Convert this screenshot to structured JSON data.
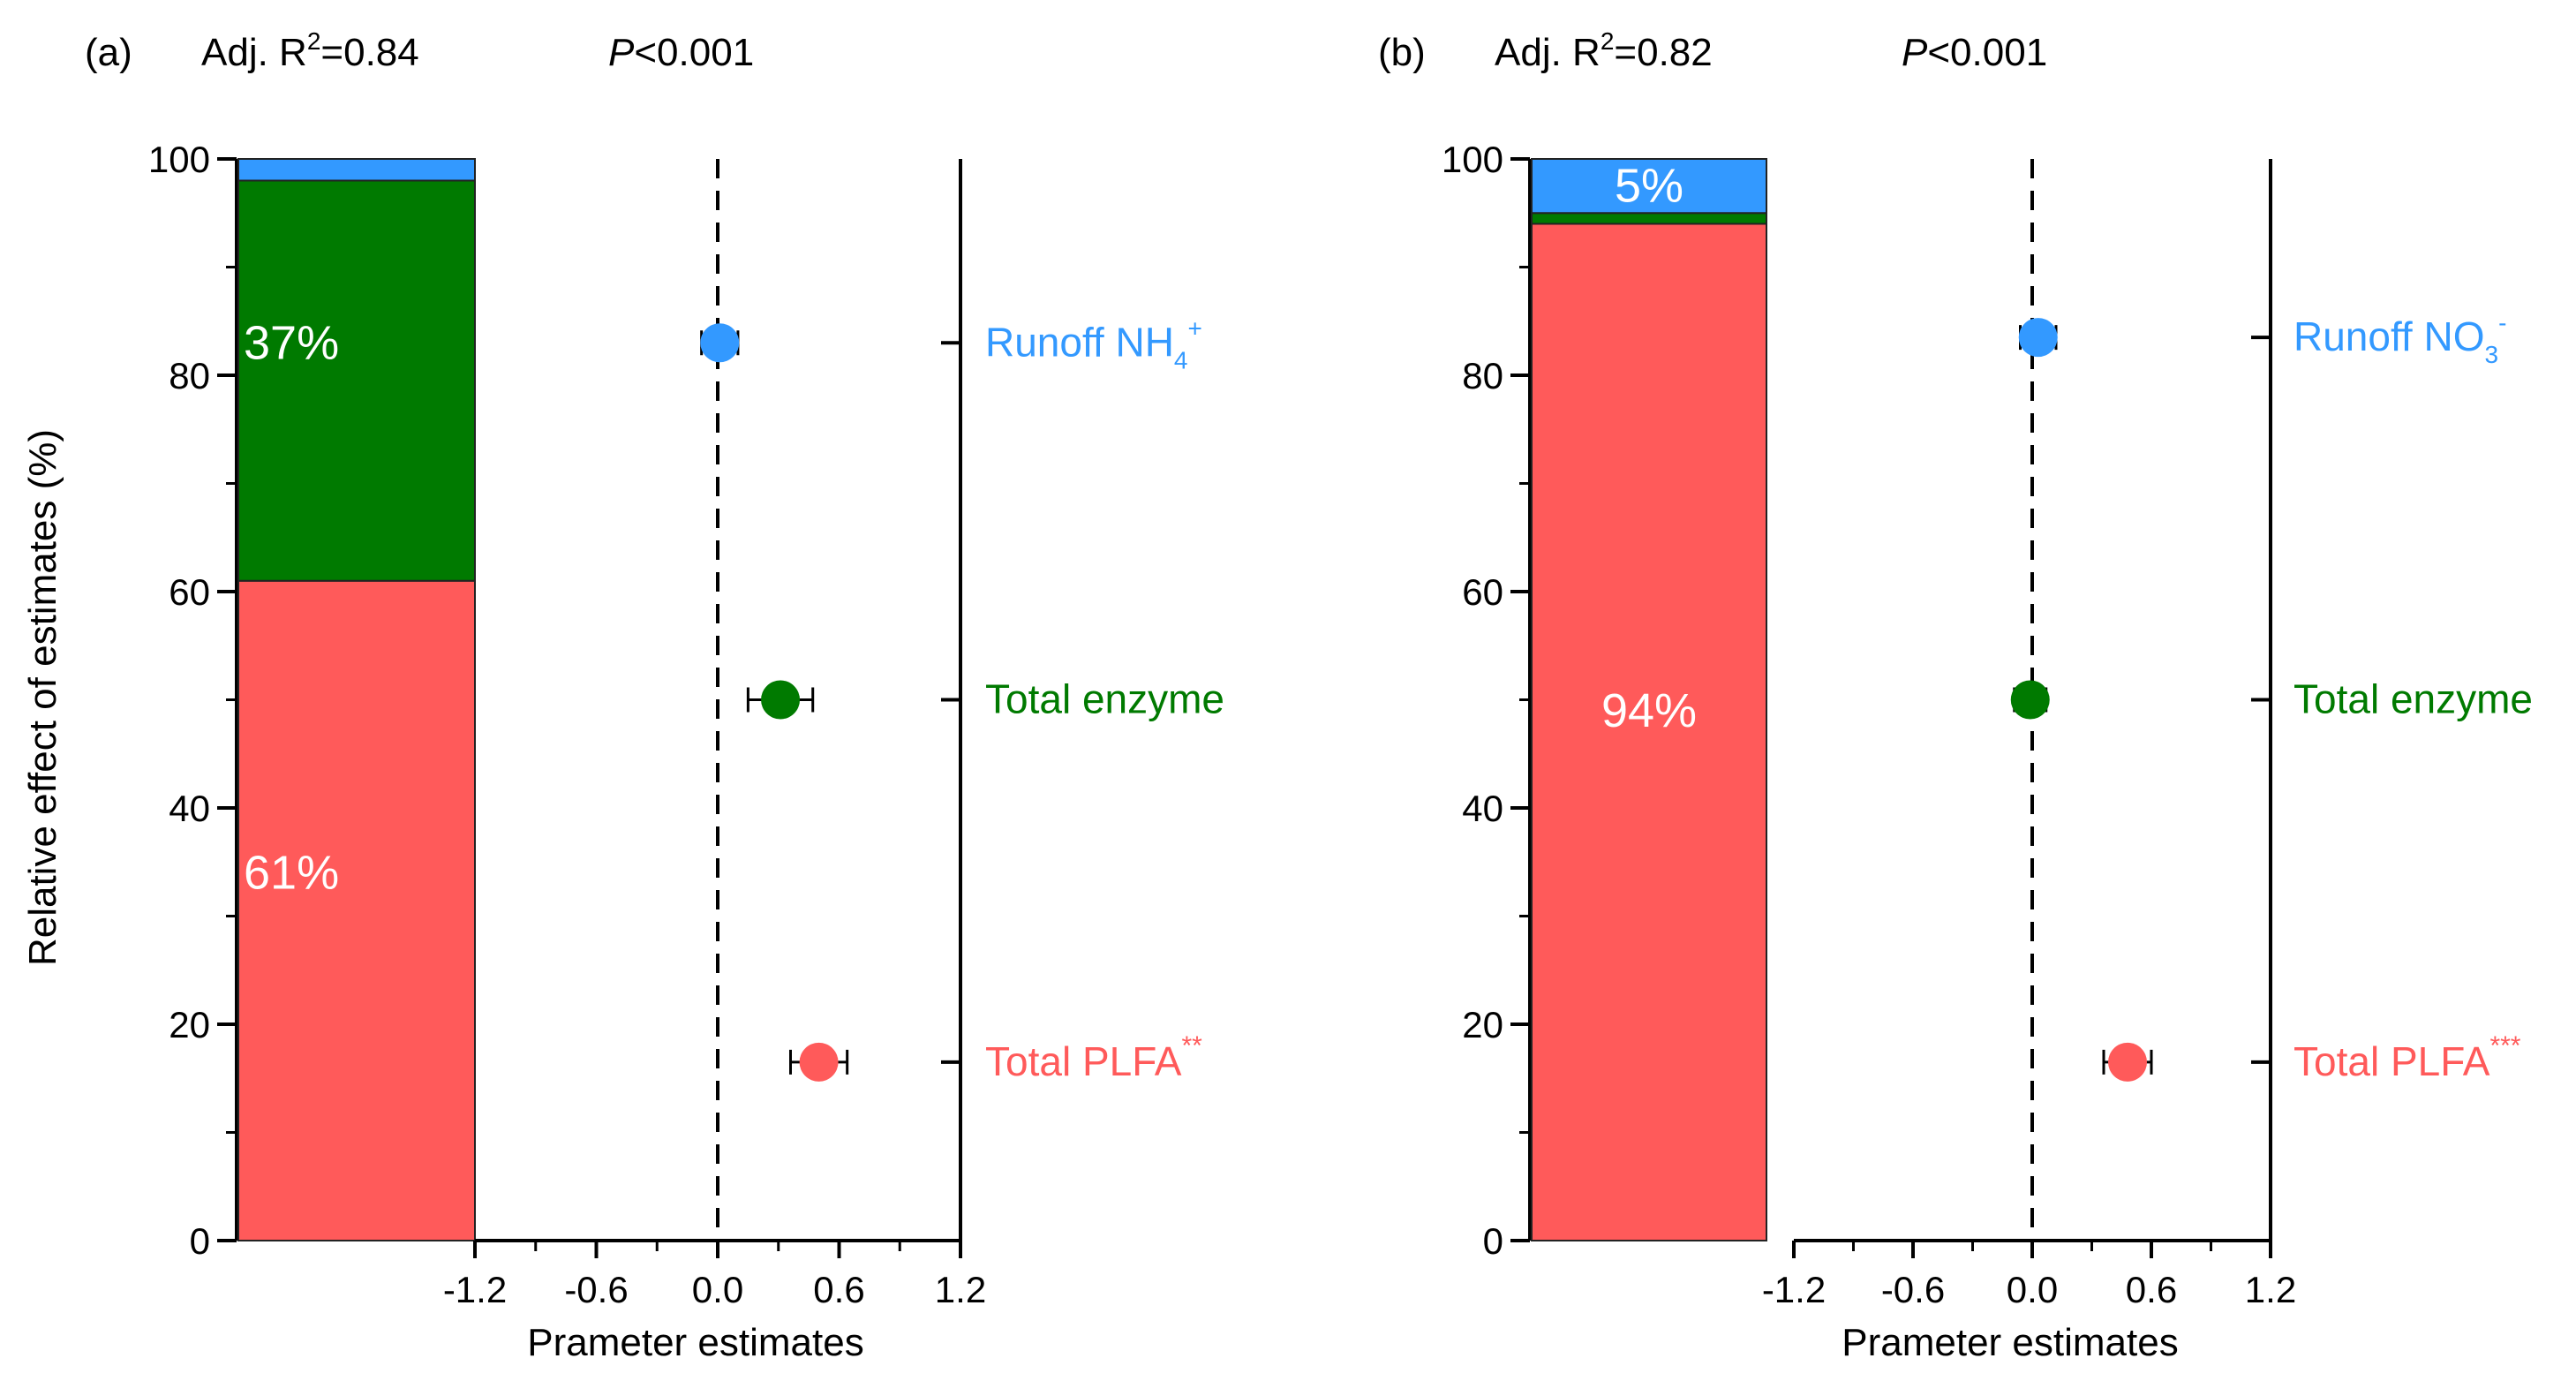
{
  "ylabel": "Relative effect of estimates (%)",
  "colors": {
    "runoff": "#3399ff",
    "enzyme": "#007a00",
    "plfa": "#ff5a5a",
    "axis": "#000000",
    "bar_label": "#ffffff"
  },
  "chart_data": [
    {
      "type": "bar",
      "panel_label": "(a)",
      "r2_prefix": "Adj. R",
      "r2_sup": "2",
      "r2_value": "=0.84",
      "p_italic": "P",
      "p_value": "<0.001",
      "xlabel": "Prameter estimates",
      "ylim": [
        0,
        100
      ],
      "y_ticks": [
        0,
        20,
        40,
        60,
        80,
        100
      ],
      "x_ticks": [
        "-1.2",
        "-0.6",
        "0.0",
        "0.6",
        "1.2"
      ],
      "xlim": [
        -1.2,
        1.2
      ],
      "stack": [
        {
          "name": "plfa",
          "value": 61,
          "label": "61%"
        },
        {
          "name": "enzyme",
          "value": 37,
          "label": "37%"
        },
        {
          "name": "runoff",
          "value": 2,
          "label": ""
        }
      ],
      "series": [
        {
          "key": "runoff",
          "name_main": "Runoff NH",
          "name_sub": "4",
          "name_sup": "+",
          "estimate": 0.01,
          "error": 0.09,
          "y_pos": 83
        },
        {
          "key": "enzyme",
          "name_main": "Total enzyme",
          "name_sub": "",
          "name_sup": "",
          "estimate": 0.31,
          "error": 0.16,
          "y_pos": 50
        },
        {
          "key": "plfa",
          "name_main": "Total PLFA",
          "name_sub": "",
          "name_sup": "**",
          "estimate": 0.5,
          "error": 0.14,
          "y_pos": 16.5
        }
      ]
    },
    {
      "type": "bar",
      "panel_label": "(b)",
      "r2_prefix": "Adj. R",
      "r2_sup": "2",
      "r2_value": "=0.82",
      "p_italic": "P",
      "p_value": "<0.001",
      "xlabel": "Prameter estimates",
      "ylim": [
        0,
        100
      ],
      "y_ticks": [
        0,
        20,
        40,
        60,
        80,
        100
      ],
      "x_ticks": [
        "-1.2",
        "-0.6",
        "0.0",
        "0.6",
        "1.2"
      ],
      "xlim": [
        -1.2,
        1.2
      ],
      "stack": [
        {
          "name": "plfa",
          "value": 94,
          "label": "94%"
        },
        {
          "name": "enzyme",
          "value": 1,
          "label": ""
        },
        {
          "name": "runoff",
          "value": 5,
          "label": "5%"
        }
      ],
      "series": [
        {
          "key": "runoff",
          "name_main": "Runoff NO",
          "name_sub": "3",
          "name_sup": "-",
          "estimate": 0.03,
          "error": 0.09,
          "y_pos": 83.5
        },
        {
          "key": "enzyme",
          "name_main": "Total enzyme",
          "name_sub": "",
          "name_sup": "",
          "estimate": -0.01,
          "error": 0.08,
          "y_pos": 50
        },
        {
          "key": "plfa",
          "name_main": "Total PLFA",
          "name_sub": "",
          "name_sup": "***",
          "estimate": 0.48,
          "error": 0.12,
          "y_pos": 16.5
        }
      ]
    }
  ]
}
